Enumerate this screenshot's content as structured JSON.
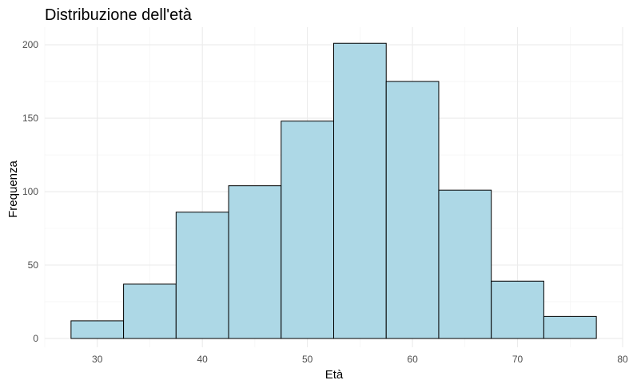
{
  "chart_data": {
    "type": "bar",
    "title": "Distribuzione dell'età",
    "xlabel": "Età",
    "ylabel": "Frequenza",
    "bins": [
      {
        "x0": 27.5,
        "x1": 32.5,
        "count": 12
      },
      {
        "x0": 32.5,
        "x1": 37.5,
        "count": 37
      },
      {
        "x0": 37.5,
        "x1": 42.5,
        "count": 86
      },
      {
        "x0": 42.5,
        "x1": 47.5,
        "count": 104
      },
      {
        "x0": 47.5,
        "x1": 52.5,
        "count": 148
      },
      {
        "x0": 52.5,
        "x1": 57.5,
        "count": 201
      },
      {
        "x0": 57.5,
        "x1": 62.5,
        "count": 175
      },
      {
        "x0": 62.5,
        "x1": 67.5,
        "count": 101
      },
      {
        "x0": 67.5,
        "x1": 72.5,
        "count": 39
      },
      {
        "x0": 72.5,
        "x1": 77.5,
        "count": 15
      }
    ],
    "xlim": [
      25,
      80
    ],
    "ylim": [
      -6,
      212
    ],
    "xticks": [
      30,
      40,
      50,
      60,
      70,
      80
    ],
    "yticks": [
      0,
      50,
      100,
      150,
      200
    ],
    "grid": true,
    "bar_color": "#add8e6",
    "bar_edge_color": "#000000"
  }
}
